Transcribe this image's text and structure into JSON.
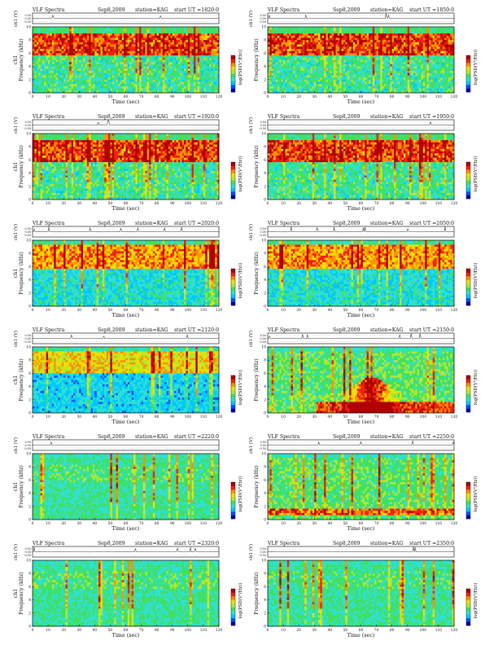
{
  "chart_data": [
    {
      "type": "heatmap",
      "instrument": "VLF Spectra",
      "date": "Sep8,2009",
      "station": "station=KAG",
      "start": "start  UT =1820:0",
      "xlabel": "Time (sec)",
      "ylabel": "Frequency (kHz)",
      "ylabel_prefix": "ch1",
      "topaxis_label": "ch1 (V)",
      "topaxis_ticks": [
        "0.50",
        "0.00",
        "-0.50"
      ],
      "xticks": [
        0,
        10,
        20,
        30,
        40,
        50,
        60,
        70,
        80,
        90,
        100,
        110,
        120
      ],
      "yticks": [
        0,
        2,
        4,
        6,
        8,
        10
      ],
      "xlim": [
        0,
        120
      ],
      "ylim": [
        0,
        10
      ],
      "colorbar_label": "log(PSD(V²/Hz))",
      "colorbar_ticks": [
        "-",
        "-"
      ],
      "profile": "high"
    },
    {
      "type": "heatmap",
      "instrument": "VLF Spectra",
      "date": "Sep8,2009",
      "station": "station=KAG",
      "start": "start  UT =1850:0",
      "xlabel": "Time (sec)",
      "ylabel": "Frequency (kHz)",
      "ylabel_prefix": "",
      "topaxis_label": "ch1 (V)",
      "topaxis_ticks": [
        "0.50",
        "0.00",
        "-0.50"
      ],
      "xticks": [
        0,
        10,
        20,
        30,
        40,
        50,
        60,
        70,
        80,
        90,
        100,
        110,
        120
      ],
      "yticks": [
        0,
        2,
        4,
        6,
        8,
        10
      ],
      "xlim": [
        0,
        120
      ],
      "ylim": [
        0,
        10
      ],
      "colorbar_label": "log(PSD(V²/Hz))",
      "colorbar_ticks": [
        "-",
        "-"
      ],
      "profile": "high"
    },
    {
      "type": "heatmap",
      "instrument": "VLF Spectra",
      "date": "Sep8,2009",
      "station": "station=KAG",
      "start": "start  UT =1920:0",
      "xlabel": "Time (sec)",
      "ylabel": "Frequency (kHz)",
      "ylabel_prefix": "ch1",
      "topaxis_label": "ch1 (V)",
      "topaxis_ticks": [
        "0.50",
        "0.00",
        "-0.50"
      ],
      "xticks": [
        0,
        10,
        20,
        30,
        40,
        50,
        60,
        70,
        80,
        90,
        100,
        110,
        120
      ],
      "yticks": [
        0,
        2,
        4,
        6,
        8,
        10
      ],
      "xlim": [
        0,
        120
      ],
      "ylim": [
        0,
        10
      ],
      "colorbar_label": "log(PSD(V²/Hz))",
      "colorbar_ticks": [
        "-",
        "-"
      ],
      "profile": "high"
    },
    {
      "type": "heatmap",
      "instrument": "VLF Spectra",
      "date": "Sep8,2009",
      "station": "station=KAG",
      "start": "start  UT =1950:0",
      "xlabel": "Time (sec)",
      "ylabel": "Frequency (kHz)",
      "ylabel_prefix": "",
      "topaxis_label": "ch1 (V)",
      "topaxis_ticks": [
        "0.50",
        "0.00",
        "-0.50"
      ],
      "xticks": [
        0,
        10,
        20,
        30,
        40,
        50,
        60,
        70,
        80,
        90,
        100,
        110,
        120
      ],
      "yticks": [
        0,
        2,
        4,
        6,
        8,
        10
      ],
      "xlim": [
        0,
        120
      ],
      "ylim": [
        0,
        10
      ],
      "colorbar_label": "log(PSD(V²/Hz))",
      "colorbar_ticks": [
        "-",
        "-"
      ],
      "profile": "high"
    },
    {
      "type": "heatmap",
      "instrument": "VLF Spectra",
      "date": "Sep8,2009",
      "station": "station=KAG",
      "start": "start  UT =2020:0",
      "xlabel": "Time (sec)",
      "ylabel": "Frequency (kHz)",
      "ylabel_prefix": "ch1",
      "topaxis_label": "ch1 (V)",
      "topaxis_ticks": [
        "0.50",
        "0.00",
        "-0.50"
      ],
      "xticks": [
        0,
        10,
        20,
        30,
        40,
        50,
        60,
        70,
        80,
        90,
        100,
        110,
        120
      ],
      "yticks": [
        0,
        2,
        4,
        6,
        8,
        10
      ],
      "xlim": [
        0,
        120
      ],
      "ylim": [
        0,
        10
      ],
      "colorbar_label": "log(PSD(V²/Hz))",
      "colorbar_ticks": [
        "-",
        "-"
      ],
      "profile": "mid"
    },
    {
      "type": "heatmap",
      "instrument": "VLF Spectra",
      "date": "Sep8,2009",
      "station": "station=KAG",
      "start": "start  UT =2050:0",
      "xlabel": "Time (sec)",
      "ylabel": "Frequency (kHz)",
      "ylabel_prefix": "",
      "topaxis_label": "ch1 (V)",
      "topaxis_ticks": [
        "0.50",
        "0.00",
        "-0.50"
      ],
      "xticks": [
        0,
        10,
        20,
        30,
        40,
        50,
        60,
        70,
        80,
        90,
        100,
        110,
        120
      ],
      "yticks": [
        0,
        2,
        4,
        6,
        8,
        10
      ],
      "xlim": [
        0,
        120
      ],
      "ylim": [
        0,
        10
      ],
      "colorbar_label": "log(PSD(V²/Hz))",
      "colorbar_ticks": [
        "-",
        "-"
      ],
      "profile": "mid"
    },
    {
      "type": "heatmap",
      "instrument": "VLF Spectra",
      "date": "Sep8,2009",
      "station": "station=KAG",
      "start": "start  UT =2120:0",
      "xlabel": "Time (sec)",
      "ylabel": "Frequency (kHz)",
      "ylabel_prefix": "ch1",
      "topaxis_label": "ch1 (V)",
      "topaxis_ticks": [
        "0.50",
        "0.00",
        "-0.50"
      ],
      "xticks": [
        0,
        10,
        20,
        30,
        40,
        50,
        60,
        70,
        80,
        90,
        100,
        110,
        120
      ],
      "yticks": [
        0,
        2,
        4,
        6,
        8,
        10
      ],
      "xlim": [
        0,
        120
      ],
      "ylim": [
        0,
        10
      ],
      "colorbar_label": "log(PSD(V²/Hz))",
      "colorbar_ticks": [
        "-",
        "-"
      ],
      "profile": "low"
    },
    {
      "type": "heatmap",
      "instrument": "VLF Spectra",
      "date": "Sep8,2009",
      "station": "station=KAG",
      "start": "start  UT =2150:0",
      "xlabel": "Time (sec)",
      "ylabel": "Frequency (kHz)",
      "ylabel_prefix": "",
      "topaxis_label": "ch1 (V)",
      "topaxis_ticks": [
        "0.50",
        "0.00",
        "-0.50"
      ],
      "xticks": [
        0,
        10,
        20,
        30,
        40,
        50,
        60,
        70,
        80,
        90,
        100,
        110,
        120
      ],
      "yticks": [
        0,
        2,
        4,
        6,
        8,
        10
      ],
      "xlim": [
        0,
        120
      ],
      "ylim": [
        0,
        10
      ],
      "colorbar_label": "log(PSD(V²/Hz))",
      "colorbar_ticks": [
        "-",
        "-"
      ],
      "profile": "event"
    },
    {
      "type": "heatmap",
      "instrument": "VLF Spectra",
      "date": "Sep8,2009",
      "station": "station=KAG",
      "start": "start  UT =2220:0",
      "xlabel": "Time (sec)",
      "ylabel": "Frequency (kHz)",
      "ylabel_prefix": "ch1",
      "topaxis_label": "ch1 (V)",
      "topaxis_ticks": [
        "0.50",
        "0.00",
        "-0.50"
      ],
      "xticks": [
        0,
        10,
        20,
        30,
        40,
        50,
        60,
        70,
        80,
        90,
        100,
        110,
        120
      ],
      "yticks": [
        0,
        2,
        4,
        6,
        8,
        10
      ],
      "xlim": [
        0,
        120
      ],
      "ylim": [
        0,
        10
      ],
      "colorbar_label": "log(PSD(V²/Hz))",
      "colorbar_ticks": [
        "-",
        "-"
      ],
      "profile": "quiet"
    },
    {
      "type": "heatmap",
      "instrument": "VLF Spectra",
      "date": "Sep8,2009",
      "station": "station=KAG",
      "start": "start  UT =2250:0",
      "xlabel": "Time (sec)",
      "ylabel": "Frequency (kHz)",
      "ylabel_prefix": "",
      "topaxis_label": "ch1 (V)",
      "topaxis_ticks": [
        "0.50",
        "0.00",
        "-0.50"
      ],
      "xticks": [
        0,
        10,
        20,
        30,
        40,
        50,
        60,
        70,
        80,
        90,
        100,
        110,
        120
      ],
      "yticks": [
        0,
        2,
        4,
        6,
        8,
        10
      ],
      "xlim": [
        0,
        120
      ],
      "ylim": [
        0,
        10
      ],
      "colorbar_label": "log(PSD(V²/Hz))",
      "colorbar_ticks": [
        "-",
        "-"
      ],
      "profile": "quietband"
    },
    {
      "type": "heatmap",
      "instrument": "VLF Spectra",
      "date": "Sep8,2009",
      "station": "station=KAG",
      "start": "start  UT =2320:0",
      "xlabel": "Time (sec)",
      "ylabel": "Frequency (kHz)",
      "ylabel_prefix": "ch1",
      "topaxis_label": "ch1 (V)",
      "topaxis_ticks": [
        "0.50",
        "0.00",
        "-0.50"
      ],
      "xticks": [
        0,
        10,
        20,
        30,
        40,
        50,
        60,
        70,
        80,
        90,
        100,
        110,
        120
      ],
      "yticks": [
        0,
        2,
        4,
        6,
        8,
        10
      ],
      "xlim": [
        0,
        120
      ],
      "ylim": [
        0,
        10
      ],
      "colorbar_label": "log(PSD(V²/Hz))",
      "colorbar_ticks": [
        "-",
        "-"
      ],
      "profile": "quiet"
    },
    {
      "type": "heatmap",
      "instrument": "VLF Spectra",
      "date": "Sep8,2009",
      "station": "station=KAG",
      "start": "start  UT =2350:0",
      "xlabel": "Time (sec)",
      "ylabel": "Frequency (kHz)",
      "ylabel_prefix": "",
      "topaxis_label": "ch1 (V)",
      "topaxis_ticks": [
        "0.50",
        "0.00",
        "-0.50"
      ],
      "xticks": [
        0,
        10,
        20,
        30,
        40,
        50,
        60,
        70,
        80,
        90,
        100,
        110,
        120
      ],
      "yticks": [
        0,
        2,
        4,
        6,
        8,
        10
      ],
      "xlim": [
        0,
        120
      ],
      "ylim": [
        0,
        10
      ],
      "colorbar_label": "log(PSD(V²/Hz))",
      "colorbar_ticks": [
        "-",
        "-"
      ],
      "profile": "quiet"
    }
  ],
  "colormap": [
    "#0000a8",
    "#0050ff",
    "#00c8ff",
    "#30e0d0",
    "#40e060",
    "#b0e830",
    "#f0e000",
    "#ff9000",
    "#f02010",
    "#b00000"
  ],
  "grid": false
}
